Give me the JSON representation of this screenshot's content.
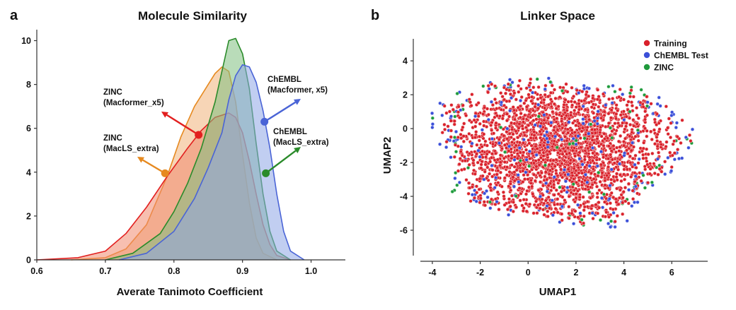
{
  "panel_a": {
    "letter": "a"
  },
  "panel_b": {
    "letter": "b"
  },
  "chart_data": [
    {
      "type": "area",
      "title": "Molecule Similarity",
      "xlabel": "Averate Tanimoto Coefficient",
      "ylabel": "",
      "xlim": [
        0.6,
        1.05
      ],
      "ylim": [
        0,
        10.5
      ],
      "xticks": [
        "0.6",
        "0.7",
        "0.8",
        "0.9",
        "1.0"
      ],
      "yticks": [
        "0",
        "2",
        "4",
        "6",
        "8",
        "10"
      ],
      "series": [
        {
          "name": "ZINC (MacLS_extra)",
          "color": "#e6891f",
          "fill": "#f0b27a",
          "x": [
            0.65,
            0.7,
            0.73,
            0.76,
            0.79,
            0.81,
            0.83,
            0.85,
            0.86,
            0.87,
            0.88,
            0.89,
            0.9,
            0.91,
            0.92,
            0.93,
            0.95
          ],
          "y": [
            0,
            0.1,
            0.5,
            1.6,
            3.8,
            5.6,
            7.0,
            8.0,
            8.5,
            8.8,
            8.6,
            7.2,
            4.8,
            2.6,
            1.0,
            0.3,
            0
          ]
        },
        {
          "name": "ZINC (Macformer_x5)",
          "color": "#e21f1f",
          "fill": "#f08a6f",
          "x": [
            0.6,
            0.66,
            0.7,
            0.73,
            0.76,
            0.79,
            0.82,
            0.84,
            0.86,
            0.88,
            0.89,
            0.9,
            0.91,
            0.92,
            0.93,
            0.94,
            0.95,
            0.97
          ],
          "y": [
            0,
            0.1,
            0.4,
            1.2,
            2.4,
            3.8,
            5.1,
            5.9,
            6.5,
            6.7,
            6.5,
            5.8,
            4.5,
            3.0,
            1.6,
            0.7,
            0.2,
            0
          ]
        },
        {
          "name": "ChEMBL (MacLS_extra)",
          "color": "#2a8b2a",
          "fill": "#7fbf7f",
          "x": [
            0.7,
            0.74,
            0.78,
            0.8,
            0.82,
            0.84,
            0.86,
            0.87,
            0.88,
            0.89,
            0.9,
            0.91,
            0.92,
            0.93,
            0.94,
            0.95,
            0.97
          ],
          "y": [
            0,
            0.3,
            1.2,
            2.2,
            3.5,
            5.1,
            7.2,
            8.6,
            10.0,
            10.1,
            9.4,
            7.8,
            5.3,
            3.0,
            1.3,
            0.4,
            0
          ]
        },
        {
          "name": "ChEMBL (Macformer, x5)",
          "color": "#4a64d6",
          "fill": "#8ea5e6",
          "x": [
            0.72,
            0.76,
            0.8,
            0.83,
            0.85,
            0.87,
            0.88,
            0.89,
            0.9,
            0.91,
            0.92,
            0.93,
            0.94,
            0.95,
            0.96,
            0.97,
            0.99
          ],
          "y": [
            0,
            0.3,
            1.3,
            2.8,
            4.2,
            5.8,
            7.3,
            8.4,
            8.9,
            8.8,
            8.1,
            6.8,
            5.1,
            3.0,
            1.3,
            0.4,
            0
          ]
        }
      ],
      "annotations": [
        {
          "line1": "ZINC",
          "line2": "(Macformer_x5)",
          "color": "#e21f1f",
          "anchor_x": 0.836,
          "anchor_y": 5.7
        },
        {
          "line1": "ZINC",
          "line2": "(MacLS_extra)",
          "color": "#e6891f",
          "anchor_x": 0.787,
          "anchor_y": 3.95
        },
        {
          "line1": "ChEMBL",
          "line2": "(Macformer, x5)",
          "color": "#4a64d6",
          "anchor_x": 0.932,
          "anchor_y": 6.3
        },
        {
          "line1": "ChEMBL",
          "line2": "(MacLS_extra)",
          "color": "#2a8b2a",
          "anchor_x": 0.934,
          "anchor_y": 3.95
        }
      ]
    },
    {
      "type": "scatter",
      "title": "Linker Space",
      "xlabel": "UMAP1",
      "ylabel": "UMAP2",
      "xlim": [
        -4.5,
        7.5
      ],
      "ylim": [
        -7.5,
        5.3
      ],
      "xticks": [
        "-4",
        "-2",
        "0",
        "2",
        "4",
        "6"
      ],
      "yticks": [
        "4",
        "2",
        "0",
        "-2",
        "-4",
        "-6"
      ],
      "legend_position": "top-right",
      "series": [
        {
          "name": "Training",
          "color": "#d9212b",
          "edge": "#f5c0c0"
        },
        {
          "name": "ChEMBL Test",
          "color": "#3b4fd8",
          "edge": "#c5ccf5"
        },
        {
          "name": "ZINC",
          "color": "#1f9a3c",
          "edge": "#bfe8c8"
        }
      ]
    }
  ]
}
